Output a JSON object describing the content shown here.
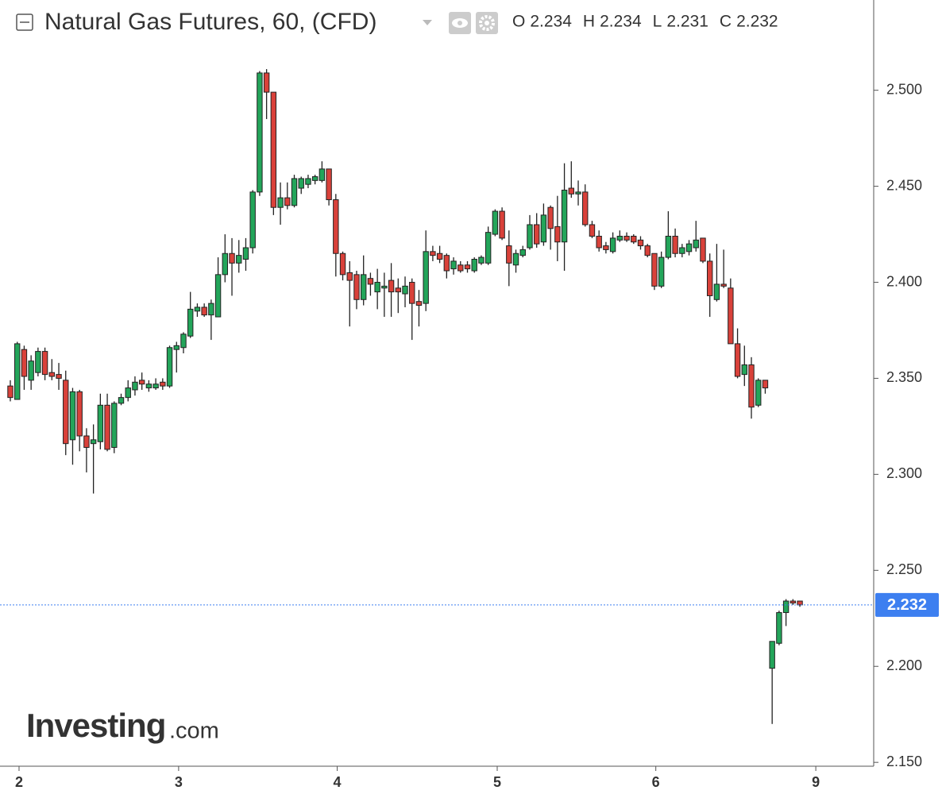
{
  "chart_data": {
    "type": "candlestick",
    "title": "Natural Gas Futures, 60, (CFD)",
    "ohlc_legend": [
      {
        "label": "O",
        "value": 2.234
      },
      {
        "label": "H",
        "value": 2.234
      },
      {
        "label": "L",
        "value": 2.231
      },
      {
        "label": "C",
        "value": 2.232
      }
    ],
    "watermark": {
      "brand": "Investing",
      "suffix": ".com"
    },
    "up_color": "#23a55a",
    "down_color": "#d9413a",
    "last_price": 2.232,
    "last_price_color": "#3d7ff0",
    "x": [
      0,
      1,
      2,
      3,
      4,
      5,
      6,
      7,
      8,
      9,
      10,
      11,
      12,
      13,
      14,
      15,
      16,
      17,
      18,
      19,
      20,
      21,
      22,
      23,
      24,
      25,
      26,
      27,
      28,
      29,
      30,
      31,
      32,
      33,
      34,
      35,
      36,
      37,
      38,
      39,
      40,
      41,
      42,
      43,
      44,
      45,
      46,
      47,
      48,
      49,
      50,
      51,
      52,
      53,
      54,
      55,
      56,
      57,
      58,
      59,
      60,
      61,
      62,
      63,
      64,
      65,
      66,
      67,
      68,
      69,
      70,
      71,
      72,
      73,
      74,
      75,
      76,
      77,
      78,
      79,
      80,
      81,
      82,
      83,
      84,
      85,
      86,
      87,
      88,
      89,
      90,
      91,
      92,
      93,
      94,
      95,
      96,
      97,
      98,
      99,
      100,
      101,
      102,
      103,
      104,
      105,
      106,
      107,
      108,
      109,
      110,
      111,
      112,
      113,
      114
    ],
    "open": [
      2.346,
      2.339,
      2.365,
      2.349,
      2.353,
      2.364,
      2.353,
      2.352,
      2.349,
      2.318,
      2.343,
      2.32,
      2.316,
      2.317,
      2.336,
      2.314,
      2.337,
      2.34,
      2.344,
      2.349,
      2.345,
      2.345,
      2.348,
      2.346,
      2.365,
      2.366,
      2.372,
      2.385,
      2.387,
      2.383,
      2.382,
      2.404,
      2.415,
      2.41,
      2.412,
      2.418,
      2.447,
      2.509,
      2.499,
      2.439,
      2.444,
      2.44,
      2.449,
      2.451,
      2.453,
      2.453,
      2.459,
      2.443,
      2.415,
      2.405,
      2.404,
      2.391,
      2.402,
      2.395,
      2.397,
      2.401,
      2.397,
      2.394,
      2.4,
      2.39,
      2.389,
      2.416,
      2.415,
      2.414,
      2.407,
      2.409,
      2.409,
      2.406,
      2.41,
      2.41,
      2.425,
      2.437,
      2.419,
      2.409,
      2.414,
      2.418,
      2.43,
      2.421,
      2.439,
      2.429,
      2.421,
      2.449,
      2.446,
      2.447,
      2.43,
      2.424,
      2.419,
      2.416,
      2.422,
      2.424,
      2.424,
      2.422,
      2.419,
      2.415,
      2.398,
      2.413,
      2.424,
      2.415,
      2.416,
      2.418,
      2.423,
      2.411,
      2.391,
      2.399,
      2.397,
      2.368,
      2.352,
      2.357,
      2.336,
      2.349,
      2.199,
      2.212,
      2.228,
      2.234,
      2.234
    ],
    "high": [
      2.349,
      2.369,
      2.367,
      2.362,
      2.366,
      2.366,
      2.36,
      2.358,
      2.354,
      2.345,
      2.344,
      2.324,
      2.326,
      2.342,
      2.342,
      2.338,
      2.342,
      2.349,
      2.351,
      2.353,
      2.349,
      2.35,
      2.35,
      2.367,
      2.369,
      2.374,
      2.395,
      2.389,
      2.389,
      2.391,
      2.413,
      2.425,
      2.423,
      2.422,
      2.423,
      2.448,
      2.51,
      2.511,
      2.499,
      2.452,
      2.452,
      2.456,
      2.455,
      2.456,
      2.456,
      2.463,
      2.459,
      2.446,
      2.416,
      2.411,
      2.406,
      2.414,
      2.405,
      2.407,
      2.405,
      2.41,
      2.402,
      2.403,
      2.402,
      2.396,
      2.427,
      2.419,
      2.419,
      2.415,
      2.413,
      2.411,
      2.411,
      2.413,
      2.414,
      2.429,
      2.438,
      2.439,
      2.427,
      2.417,
      2.419,
      2.435,
      2.436,
      2.441,
      2.44,
      2.445,
      2.462,
      2.463,
      2.453,
      2.451,
      2.432,
      2.427,
      2.421,
      2.426,
      2.427,
      2.426,
      2.425,
      2.424,
      2.42,
      2.415,
      2.416,
      2.437,
      2.428,
      2.42,
      2.422,
      2.432,
      2.423,
      2.415,
      2.42,
      2.417,
      2.402,
      2.376,
      2.367,
      2.361,
      2.35,
      2.349,
      2.213,
      2.229,
      2.235,
      2.235,
      2.234
    ],
    "low": [
      2.338,
      2.339,
      2.344,
      2.344,
      2.351,
      2.349,
      2.349,
      2.344,
      2.31,
      2.305,
      2.312,
      2.301,
      2.29,
      2.313,
      2.312,
      2.311,
      2.336,
      2.338,
      2.341,
      2.344,
      2.343,
      2.344,
      2.344,
      2.345,
      2.353,
      2.363,
      2.371,
      2.382,
      2.382,
      2.37,
      2.382,
      2.4,
      2.393,
      2.405,
      2.406,
      2.415,
      2.445,
      2.485,
      2.435,
      2.43,
      2.438,
      2.439,
      2.446,
      2.449,
      2.451,
      2.452,
      2.44,
      2.403,
      2.401,
      2.377,
      2.386,
      2.388,
      2.393,
      2.386,
      2.382,
      2.382,
      2.384,
      2.387,
      2.37,
      2.377,
      2.385,
      2.411,
      2.41,
      2.402,
      2.404,
      2.405,
      2.405,
      2.405,
      2.409,
      2.409,
      2.424,
      2.422,
      2.398,
      2.405,
      2.413,
      2.417,
      2.418,
      2.419,
      2.417,
      2.411,
      2.406,
      2.444,
      2.44,
      2.429,
      2.423,
      2.416,
      2.415,
      2.415,
      2.421,
      2.421,
      2.42,
      2.417,
      2.413,
      2.396,
      2.397,
      2.412,
      2.413,
      2.413,
      2.414,
      2.416,
      2.41,
      2.382,
      2.39,
      2.397,
      2.368,
      2.35,
      2.346,
      2.329,
      2.335,
      2.342,
      2.17,
      2.211,
      2.221,
      2.232,
      2.231
    ],
    "close": [
      2.34,
      2.368,
      2.351,
      2.359,
      2.364,
      2.352,
      2.351,
      2.35,
      2.316,
      2.343,
      2.32,
      2.314,
      2.318,
      2.336,
      2.313,
      2.337,
      2.34,
      2.345,
      2.348,
      2.347,
      2.347,
      2.347,
      2.346,
      2.366,
      2.367,
      2.373,
      2.386,
      2.387,
      2.383,
      2.389,
      2.404,
      2.415,
      2.41,
      2.414,
      2.418,
      2.447,
      2.509,
      2.499,
      2.439,
      2.444,
      2.44,
      2.454,
      2.454,
      2.454,
      2.455,
      2.459,
      2.443,
      2.415,
      2.404,
      2.401,
      2.391,
      2.404,
      2.399,
      2.4,
      2.398,
      2.395,
      2.395,
      2.398,
      2.389,
      2.388,
      2.416,
      2.414,
      2.412,
      2.406,
      2.411,
      2.406,
      2.407,
      2.412,
      2.413,
      2.426,
      2.437,
      2.423,
      2.41,
      2.415,
      2.417,
      2.43,
      2.42,
      2.435,
      2.428,
      2.421,
      2.448,
      2.446,
      2.447,
      2.43,
      2.424,
      2.418,
      2.417,
      2.423,
      2.424,
      2.422,
      2.421,
      2.419,
      2.414,
      2.398,
      2.413,
      2.424,
      2.415,
      2.418,
      2.42,
      2.422,
      2.411,
      2.393,
      2.399,
      2.398,
      2.368,
      2.351,
      2.357,
      2.335,
      2.349,
      2.345,
      2.213,
      2.228,
      2.234,
      2.233,
      2.232
    ],
    "xlim": [
      -1.49,
      124.66
    ],
    "xticks": [
      {
        "value": 1.26,
        "label": "2"
      },
      {
        "value": 24.3,
        "label": "3"
      },
      {
        "value": 47.2,
        "label": "4"
      },
      {
        "value": 70.3,
        "label": "5"
      },
      {
        "value": 93.2,
        "label": "6"
      },
      {
        "value": 116.3,
        "label": "9"
      }
    ],
    "ylim": [
      2.148,
      2.547
    ],
    "yticks": [
      {
        "value": 2.15,
        "label": "2.150"
      },
      {
        "value": 2.2,
        "label": "2.200"
      },
      {
        "value": 2.25,
        "label": "2.250"
      },
      {
        "value": 2.3,
        "label": "2.300"
      },
      {
        "value": 2.35,
        "label": "2.350"
      },
      {
        "value": 2.4,
        "label": "2.400"
      },
      {
        "value": 2.45,
        "label": "2.450"
      },
      {
        "value": 2.5,
        "label": "2.500"
      }
    ]
  }
}
